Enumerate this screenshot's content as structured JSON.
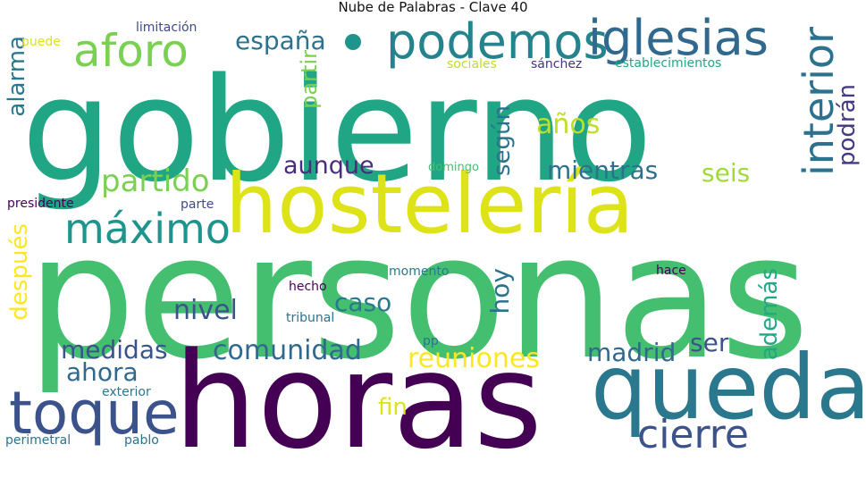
{
  "title": "Nube de Palabras - Clave 40",
  "words": {
    "personas": {
      "text": "personas",
      "color": "#44bf70"
    },
    "gobierno": {
      "text": "gobierno",
      "color": "#21a685"
    },
    "horas": {
      "text": "horas",
      "color": "#440154"
    },
    "hosteleria": {
      "text": "hostelería",
      "color": "#dde318"
    },
    "queda": {
      "text": "queda",
      "color": "#2a788e"
    },
    "toque": {
      "text": "toque",
      "color": "#3b528b"
    },
    "podemos": {
      "text": "podemos",
      "color": "#25838e"
    },
    "iglesias": {
      "text": "iglesias",
      "color": "#31688e"
    },
    "interior": {
      "text": "interior",
      "color": "#2c728e"
    },
    "aforo": {
      "text": "aforo",
      "color": "#7ad151"
    },
    "maximo": {
      "text": "máximo",
      "color": "#1f948c"
    },
    "cierre": {
      "text": "cierre",
      "color": "#3b528b"
    },
    "partido": {
      "text": "partido",
      "color": "#7ad151"
    },
    "comunidad": {
      "text": "comunidad",
      "color": "#31688e"
    },
    "reuniones": {
      "text": "reuniones",
      "color": "#fde725"
    },
    "espana": {
      "text": "españa",
      "color": "#2c728e"
    },
    "medidas": {
      "text": "medidas",
      "color": "#3b528b"
    },
    "ahora": {
      "text": "ahora",
      "color": "#31688e"
    },
    "mientras": {
      "text": "mientras",
      "color": "#2c728e"
    },
    "seis": {
      "text": "seis",
      "color": "#a0da39"
    },
    "aunque": {
      "text": "aunque",
      "color": "#472d7b"
    },
    "nivel": {
      "text": "nivel",
      "color": "#3b528b"
    },
    "caso": {
      "text": "caso",
      "color": "#2a788e"
    },
    "anos": {
      "text": "años",
      "color": "#bddf26"
    },
    "segun": {
      "text": "según",
      "color": "#2c728e"
    },
    "podran": {
      "text": "podrán",
      "color": "#443983"
    },
    "partir": {
      "text": "partir",
      "color": "#7ad151"
    },
    "alarma": {
      "text": "alarma",
      "color": "#2a788e"
    },
    "despues": {
      "text": "después",
      "color": "#fde725"
    },
    "hoy": {
      "text": "hoy",
      "color": "#2c728e"
    },
    "madrid": {
      "text": "madrid",
      "color": "#31688e"
    },
    "ser": {
      "text": "ser",
      "color": "#3b528b"
    },
    "ademas": {
      "text": "además",
      "color": "#22a884"
    },
    "fin": {
      "text": "fin",
      "color": "#dde318"
    },
    "limitacion": {
      "text": "limitación",
      "color": "#3e4989"
    },
    "puede": {
      "text": "puede",
      "color": "#dde318"
    },
    "sociales": {
      "text": "sociales",
      "color": "#bddf26"
    },
    "sanchez": {
      "text": "sánchez",
      "color": "#46337e"
    },
    "establecimientos": {
      "text": "establecimientos",
      "color": "#21a685"
    },
    "domingo": {
      "text": "domingo",
      "color": "#44bf70"
    },
    "presidente": {
      "text": "presidente",
      "color": "#440154"
    },
    "parte": {
      "text": "parte",
      "color": "#3e4989"
    },
    "momento": {
      "text": "momento",
      "color": "#2a788e"
    },
    "hace": {
      "text": "hace",
      "color": "#440154"
    },
    "hecho": {
      "text": "hecho",
      "color": "#440154"
    },
    "tribunal": {
      "text": "tribunal",
      "color": "#2c728e"
    },
    "pp": {
      "text": "pp",
      "color": "#2c728e"
    },
    "exterior": {
      "text": "exterior",
      "color": "#2a788e"
    },
    "perimetral": {
      "text": "perimetral",
      "color": "#2c728e"
    },
    "pablo": {
      "text": "pablo",
      "color": "#2c728e"
    }
  }
}
